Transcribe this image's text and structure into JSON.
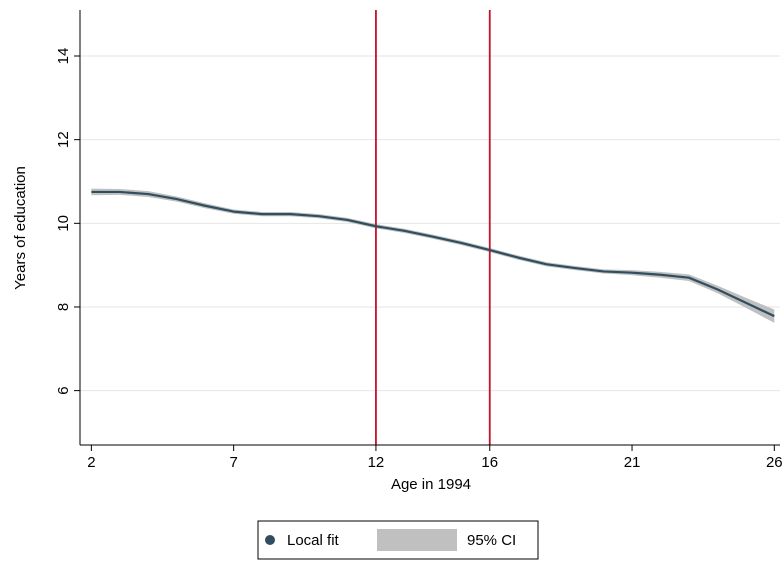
{
  "chart_data": {
    "type": "line",
    "xlabel": "Age in 1994",
    "ylabel": "Years of education",
    "xlim": [
      1.6,
      26.2
    ],
    "ylim": [
      4.7,
      15.1
    ],
    "x_ticks": [
      2,
      7,
      12,
      16,
      21,
      26
    ],
    "y_ticks": [
      6,
      8,
      10,
      12,
      14
    ],
    "grid": "horizontal",
    "vertical_lines": [
      12,
      16
    ],
    "vertical_line_color": "#c8102e",
    "series": [
      {
        "name": "Local fit",
        "color": "#2f4f60",
        "x": [
          2,
          3,
          4,
          5,
          6,
          7,
          8,
          9,
          10,
          11,
          12,
          13,
          14,
          15,
          16,
          17,
          18,
          19,
          20,
          21,
          22,
          23,
          24,
          25,
          26
        ],
        "y": [
          10.75,
          10.75,
          10.7,
          10.58,
          10.42,
          10.28,
          10.22,
          10.22,
          10.17,
          10.08,
          9.93,
          9.82,
          9.68,
          9.53,
          9.36,
          9.18,
          9.02,
          8.93,
          8.85,
          8.82,
          8.77,
          8.7,
          8.42,
          8.1,
          7.78
        ]
      },
      {
        "name": "95% CI",
        "color": "#c0c0c0",
        "x": [
          2,
          3,
          4,
          5,
          6,
          7,
          8,
          9,
          10,
          11,
          12,
          13,
          14,
          15,
          16,
          17,
          18,
          19,
          20,
          21,
          22,
          23,
          24,
          25,
          26
        ],
        "lower": [
          10.67,
          10.68,
          10.63,
          10.52,
          10.36,
          10.23,
          10.17,
          10.17,
          10.12,
          10.03,
          9.88,
          9.77,
          9.63,
          9.48,
          9.31,
          9.13,
          8.97,
          8.88,
          8.8,
          8.76,
          8.7,
          8.62,
          8.33,
          7.98,
          7.62
        ],
        "upper": [
          10.83,
          10.82,
          10.77,
          10.64,
          10.48,
          10.33,
          10.27,
          10.27,
          10.22,
          10.13,
          9.98,
          9.87,
          9.73,
          9.58,
          9.41,
          9.23,
          9.07,
          8.98,
          8.9,
          8.88,
          8.84,
          8.78,
          8.51,
          8.22,
          7.94
        ]
      }
    ],
    "legend": {
      "placement": "bottom-center",
      "entries": [
        "Local fit",
        "95% CI"
      ]
    }
  }
}
